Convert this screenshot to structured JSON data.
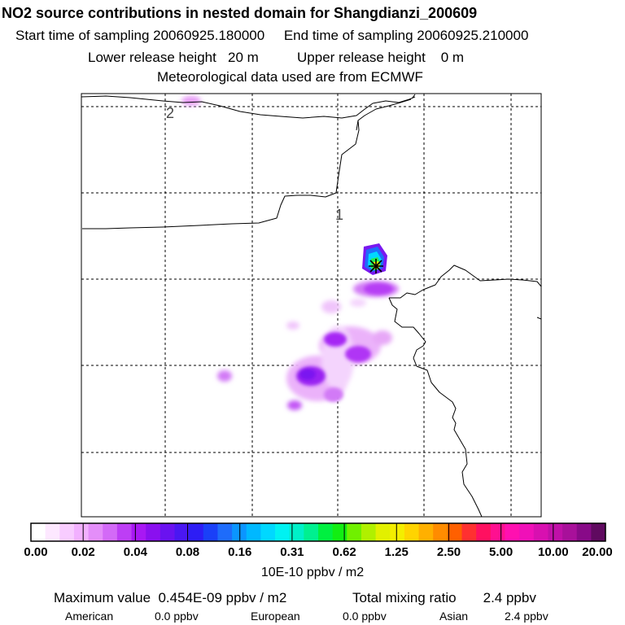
{
  "header": {
    "title": "NO2 source contributions in nested domain for Shangdianzi_200609",
    "start_label": "Start time of sampling 20060925.180000",
    "end_label": "End time of sampling 20060925.210000",
    "lower_label": "Lower release height   20 m",
    "upper_label": "Upper release height    0 m",
    "met_label": "Meteorological data used are from ECMWF"
  },
  "map": {
    "grid_labels": [
      "1",
      "2"
    ],
    "station_marker": "station-star-icon",
    "plume_colors": [
      "#f7d7ff",
      "#e7a7f7",
      "#cf6bf2",
      "#a929f5",
      "#7f1cf0"
    ]
  },
  "colorbar": {
    "ticks": [
      "0.00",
      "0.02",
      "0.04",
      "0.08",
      "0.16",
      "0.31",
      "0.62",
      "1.25",
      "2.50",
      "5.00",
      "10.00",
      "20.00"
    ],
    "colors": [
      "#ffffff",
      "#fde8ff",
      "#f8ccff",
      "#f2b0ff",
      "#e48ef9",
      "#d36af7",
      "#bd3ef5",
      "#a818f4",
      "#8a10ef",
      "#6a12f0",
      "#4a17f2",
      "#2d1df5",
      "#1a40f8",
      "#1e6cfb",
      "#0b95ff",
      "#00b8ff",
      "#00d8ff",
      "#00f2f2",
      "#00f0c8",
      "#00f090",
      "#00f040",
      "#12ee12",
      "#70f000",
      "#b0f000",
      "#e2f000",
      "#f4ee00",
      "#ffd400",
      "#ffb000",
      "#ff8c00",
      "#ff6000",
      "#ff3030",
      "#ff1060",
      "#ff1090",
      "#ff10b0",
      "#f010b8",
      "#d810b0",
      "#c010a8",
      "#a8109a",
      "#880a88",
      "#600a60"
    ],
    "units": "10E-10 ppbv / m2"
  },
  "footer": {
    "max_value": "Maximum value  0.454E-09 ppbv / m2",
    "total_mixing": "Total mixing ratio       2.4 ppbv",
    "regions": [
      {
        "name": "American",
        "value": "0.0 ppbv"
      },
      {
        "name": "European",
        "value": "0.0 ppbv"
      },
      {
        "name": "Asian",
        "value": "2.4 ppbv"
      }
    ]
  }
}
